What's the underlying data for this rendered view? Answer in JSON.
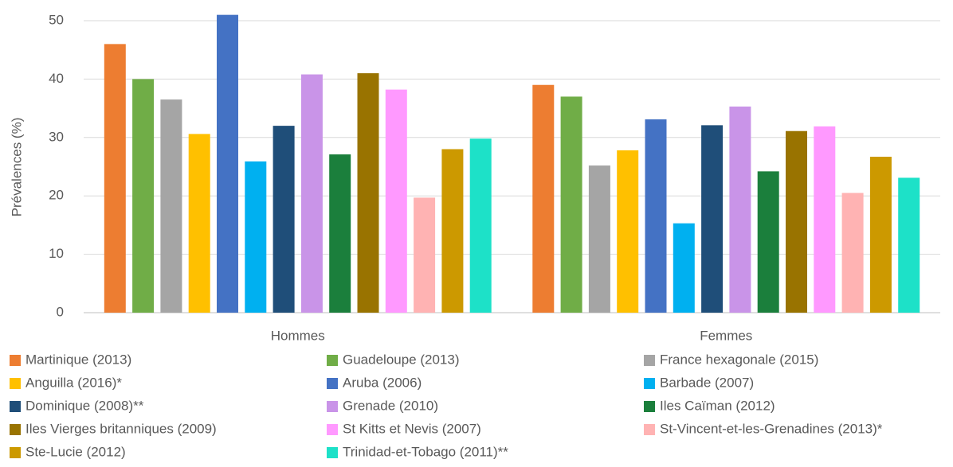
{
  "chart_data": {
    "type": "bar",
    "y_label": "Prévalences (%)",
    "categories": [
      "Hommes",
      "Femmes"
    ],
    "ylim": [
      0,
      52
    ],
    "yticks": [
      0,
      10,
      20,
      30,
      40,
      50
    ],
    "grid": true,
    "series": [
      {
        "name": "Martinique (2013)",
        "color": "#ED7D31",
        "values": [
          46,
          39
        ]
      },
      {
        "name": "Guadeloupe (2013)",
        "color": "#70AD47",
        "values": [
          40,
          37
        ]
      },
      {
        "name": "France hexagonale (2015)",
        "color": "#A5A5A5",
        "values": [
          36.5,
          25.2
        ]
      },
      {
        "name": "Anguilla (2016)*",
        "color": "#FFC000",
        "values": [
          30.6,
          27.8
        ]
      },
      {
        "name": "Aruba (2006)",
        "color": "#4472C4",
        "values": [
          51,
          33.1
        ]
      },
      {
        "name": "Barbade (2007)",
        "color": "#00B0F0",
        "values": [
          25.9,
          15.3
        ]
      },
      {
        "name": "Dominique (2008)**",
        "color": "#1F4E79",
        "values": [
          32,
          32.1
        ]
      },
      {
        "name": "Grenade (2010)",
        "color": "#C994E8",
        "values": [
          40.8,
          35.3
        ]
      },
      {
        "name": "Iles Caïman (2012)",
        "color": "#1B7F3C",
        "values": [
          27.1,
          24.2
        ]
      },
      {
        "name": "Iles Vierges britanniques (2009)",
        "color": "#997300",
        "values": [
          41,
          31.1
        ]
      },
      {
        "name": "St Kitts et Nevis (2007)",
        "color": "#FF99FF",
        "values": [
          38.2,
          31.9
        ]
      },
      {
        "name": "St-Vincent-et-les-Grenadines (2013)*",
        "color": "#FFB3B3",
        "values": [
          19.7,
          20.5
        ]
      },
      {
        "name": "Ste-Lucie (2012)",
        "color": "#CC9900",
        "values": [
          28,
          26.7
        ]
      },
      {
        "name": "Trinidad-et-Tobago (2011)**",
        "color": "#1DE1C8",
        "values": [
          29.8,
          23.1
        ]
      }
    ]
  }
}
